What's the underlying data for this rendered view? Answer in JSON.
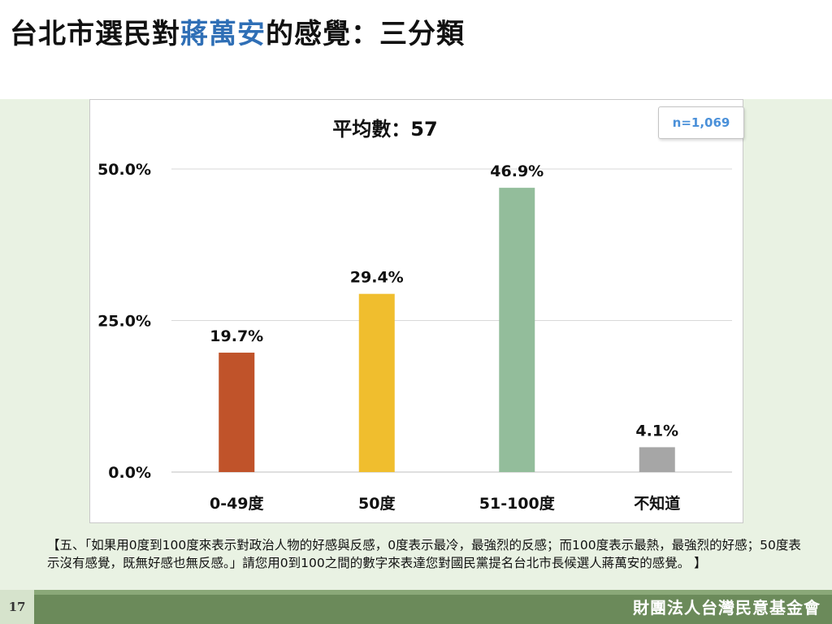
{
  "title": {
    "prefix": "台北市選民對",
    "highlight": "蔣萬安",
    "suffix": "的感覺：三分類"
  },
  "colors": {
    "highlight": "#2f6fb6"
  },
  "chart_data": {
    "type": "bar",
    "title": "平均數：57",
    "annotation": "n=1,069",
    "categories": [
      "0-49度",
      "50度",
      "51-100度",
      "不知道"
    ],
    "values": [
      19.7,
      29.4,
      46.9,
      4.1
    ],
    "value_labels": [
      "19.7%",
      "29.4%",
      "46.9%",
      "4.1%"
    ],
    "colors": [
      "#c0532a",
      "#f0be2e",
      "#93bd9b",
      "#a6a6a6"
    ],
    "yticks": [
      0,
      25,
      50
    ],
    "ytick_labels": [
      "0.0%",
      "25.0%",
      "50.0%"
    ],
    "ylim": [
      0,
      50
    ],
    "grid": true
  },
  "footnote": "【五、「如果用0度到100度來表示對政治人物的好感與反感，0度表示最冷，最強烈的反感；而100度表示最熱，最強烈的好感；50度表示沒有感覺，既無好感也無反感。」請您用0到100之間的數字來表達您對國民黨提名台北市長候選人蔣萬安的感覺。 】",
  "page_number": "17",
  "organization": "財團法人台灣民意基金會"
}
